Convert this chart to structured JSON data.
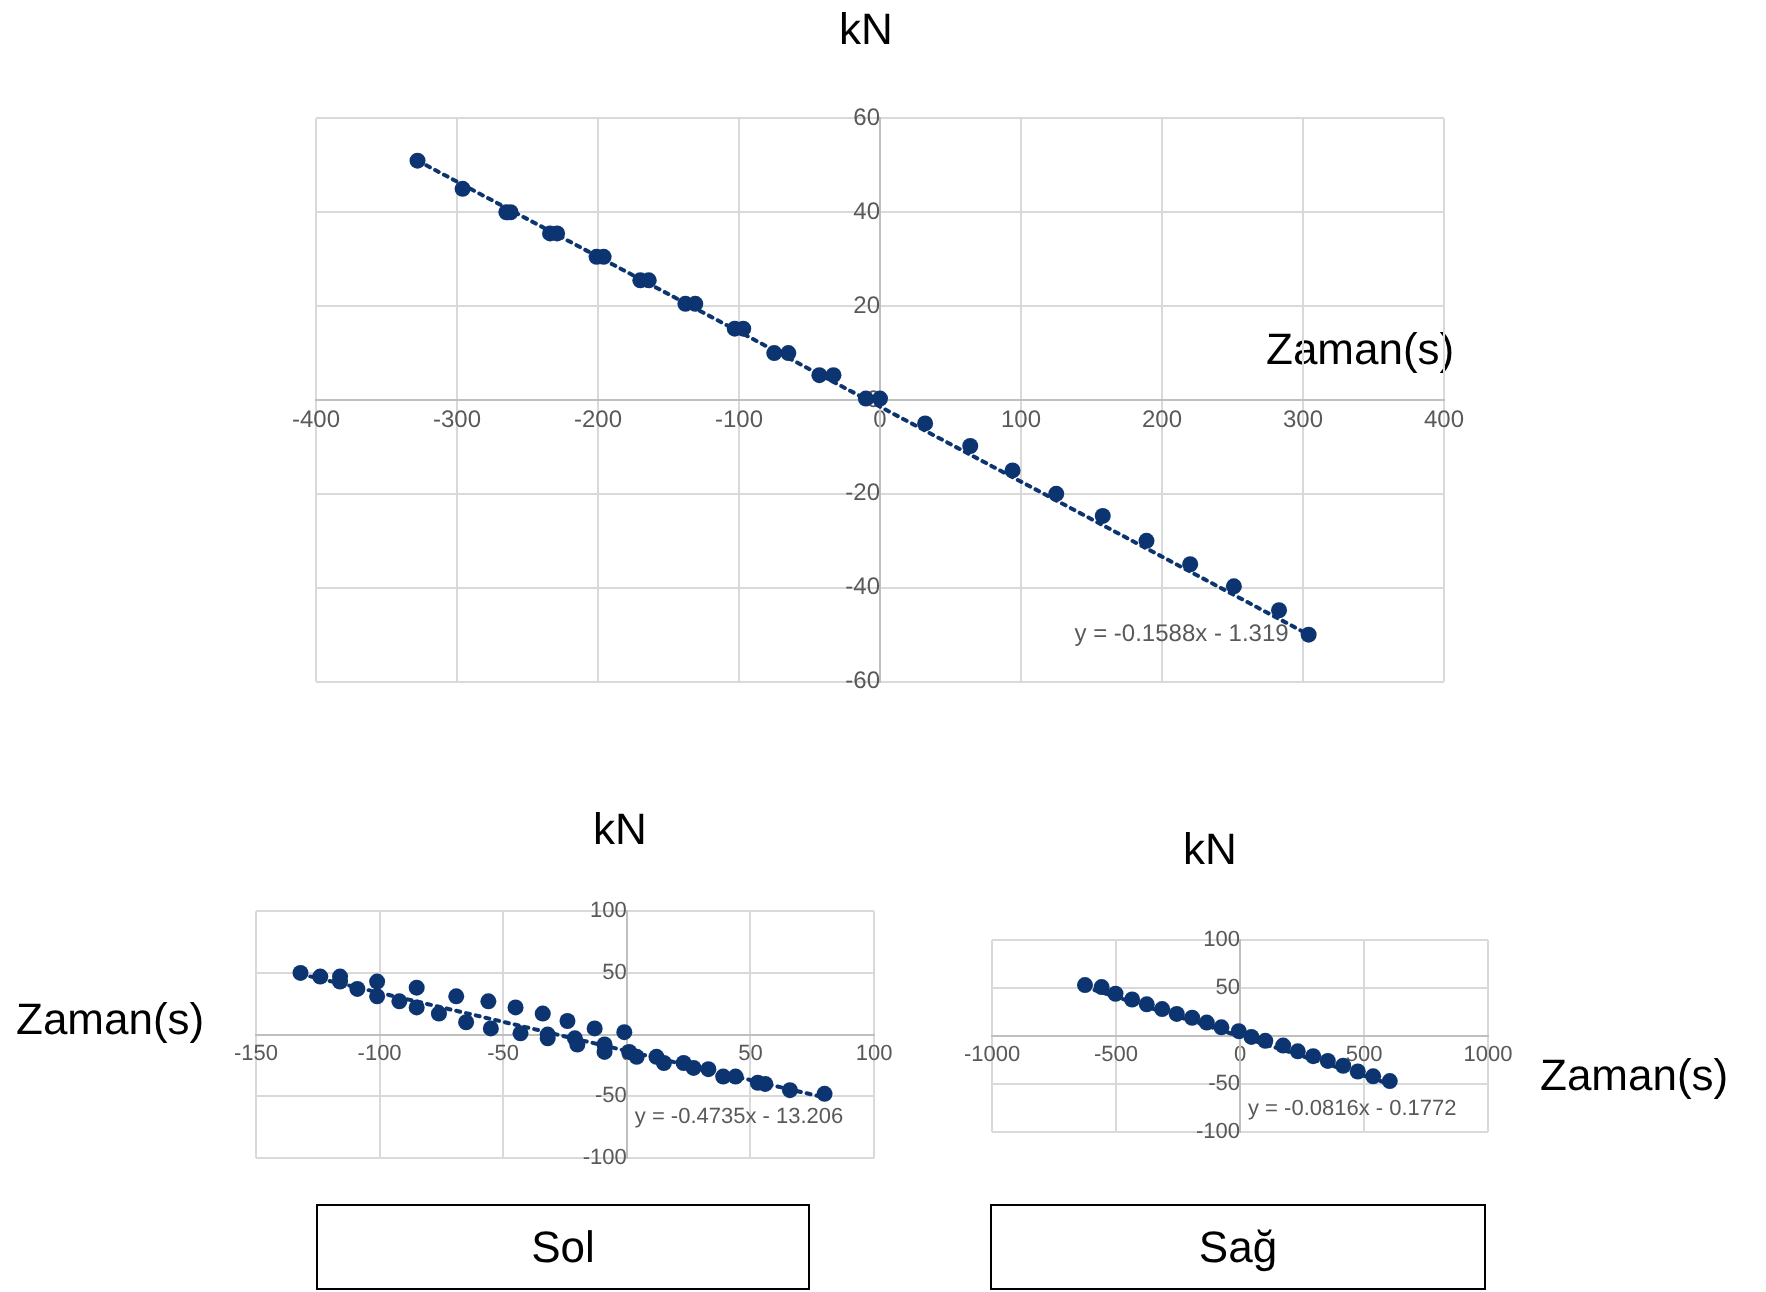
{
  "chart_data": [
    {
      "type": "scatter",
      "xlabel": "Zaman(s)",
      "ylabel": "kN",
      "xlim": [
        -400,
        400
      ],
      "ylim": [
        -60,
        60
      ],
      "xticks": [
        -400,
        -300,
        -200,
        -100,
        0,
        100,
        200,
        300,
        400
      ],
      "yticks": [
        -60,
        -40,
        -20,
        0,
        20,
        40,
        60
      ],
      "grid": true,
      "marker": "circle",
      "annotations": [
        {
          "text": "y = -0.1588x - 1.319",
          "x": 304,
          "y": -50
        }
      ],
      "series": [
        {
          "color": "#0b3470",
          "x": [
            -328,
            -296,
            -265,
            -262,
            -234,
            -229,
            -201,
            -196,
            -170,
            -164,
            -138,
            -131,
            -103,
            -97,
            -75,
            -65,
            -43,
            -33,
            -10,
            0,
            32,
            64,
            94,
            125,
            158,
            189,
            220,
            251,
            283,
            304
          ],
          "values": [
            51,
            45,
            40,
            40,
            35.5,
            35.5,
            30.5,
            30.5,
            25.5,
            25.5,
            20.5,
            20.5,
            15.2,
            15.2,
            10,
            10,
            5.3,
            5.3,
            0.3,
            0.3,
            -5,
            -9.8,
            -15,
            -20,
            -24.7,
            -30,
            -35,
            -39.7,
            -44.8,
            -50
          ]
        },
        {
          "type": "line",
          "color": "#0b3470",
          "line_style": "dotted",
          "marker": "none",
          "x": [
            -328,
            304
          ],
          "values": [
            51,
            -50
          ]
        }
      ]
    },
    {
      "type": "scatter",
      "xlabel": "Zaman(s)",
      "ylabel": "kN",
      "xlim": [
        -150,
        100
      ],
      "ylim": [
        -100,
        100
      ],
      "xticks": [
        -150,
        -100,
        -50,
        0,
        50,
        100
      ],
      "yticks": [
        -100,
        -50,
        50,
        100
      ],
      "grid": true,
      "marker": "circle",
      "annotations": [
        {
          "text": "y = -0.4735x - 13.206",
          "x": 80,
          "y": -48
        },
        "Sol"
      ],
      "series": [
        {
          "color": "#0b3470",
          "x": [
            -132,
            -124,
            -116,
            -116,
            -109,
            -101,
            -101,
            -92,
            -85,
            -85,
            -76,
            -69,
            -65,
            -56,
            -55,
            -45,
            -43,
            -34,
            -32,
            -32,
            -24,
            -21,
            -20,
            -13,
            -9,
            -9,
            -1,
            1,
            4,
            12,
            15,
            23,
            27,
            33,
            39,
            44,
            53,
            56,
            66,
            80
          ],
          "values": [
            50,
            47,
            47,
            43,
            37,
            43,
            31,
            27,
            38,
            22,
            17,
            31,
            10,
            27,
            5,
            22,
            1,
            17,
            0,
            -3,
            11,
            -3,
            -8,
            5,
            -8,
            -14,
            2,
            -14,
            -18,
            -18,
            -23,
            -23,
            -27,
            -28,
            -34,
            -34,
            -39,
            -40,
            -45,
            -48
          ]
        },
        {
          "type": "line",
          "color": "#0b3470",
          "line_style": "dotted",
          "marker": "none",
          "x": [
            -132,
            80
          ],
          "values": [
            49,
            -51
          ]
        }
      ]
    },
    {
      "type": "scatter",
      "xlabel": "Zaman(s)",
      "ylabel": "kN",
      "xlim": [
        -1000,
        1000
      ],
      "ylim": [
        -100,
        100
      ],
      "xticks": [
        -1000,
        -500,
        0,
        500,
        1000
      ],
      "yticks": [
        -100,
        -50,
        50,
        100
      ],
      "grid": true,
      "marker": "circle",
      "annotations": [
        {
          "text": "y = -0.0816x - 0.1772",
          "x": 604,
          "y": -52
        },
        "Sağ"
      ],
      "series": [
        {
          "color": "#0b3470",
          "x": [
            -625,
            -558,
            -502,
            -435,
            -376,
            -314,
            -255,
            -193,
            -134,
            -75,
            -5,
            46,
            102,
            174,
            233,
            295,
            354,
            416,
            475,
            537,
            604
          ],
          "values": [
            53,
            51,
            44,
            38,
            33,
            28,
            23,
            19,
            14,
            9,
            5,
            -1,
            -5,
            -10,
            -16,
            -21,
            -26,
            -31,
            -37,
            -42,
            -47
          ]
        },
        {
          "type": "line",
          "color": "#0b3470",
          "line_style": "dotted",
          "marker": "none",
          "x": [
            -625,
            604
          ],
          "values": [
            51,
            -50
          ]
        }
      ]
    }
  ]
}
